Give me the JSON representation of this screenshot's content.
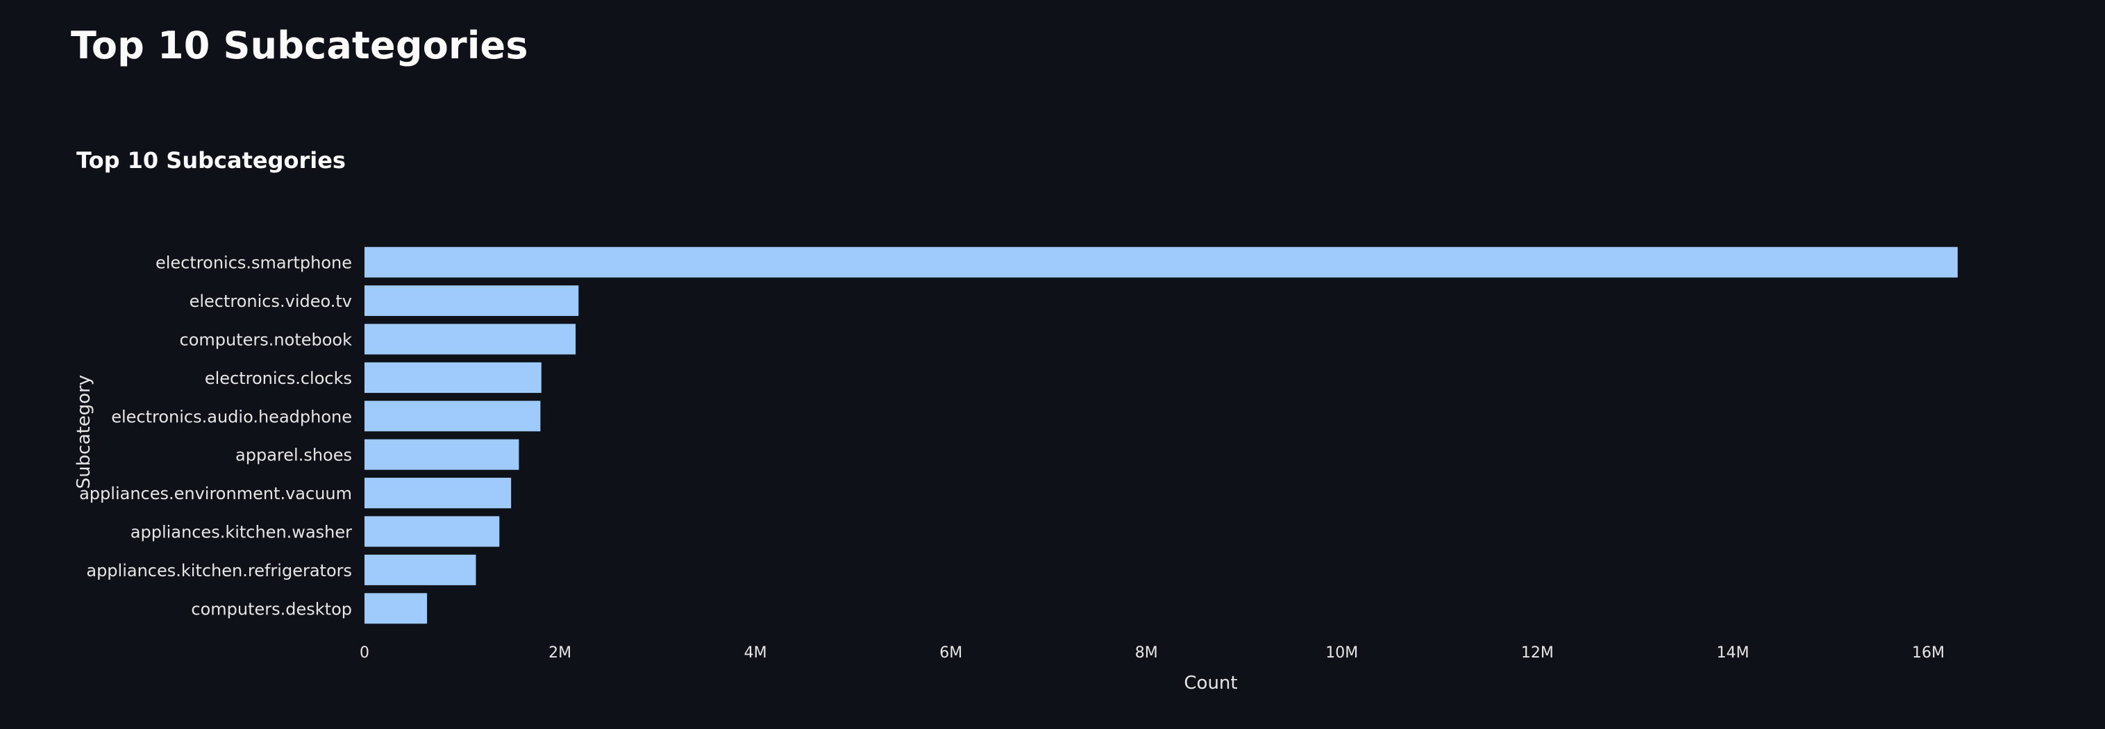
{
  "page": {
    "title": "Top 10 Subcategories"
  },
  "colors": {
    "background": "#0e1117",
    "bar": "#9ecbfc",
    "text": "#fafafa",
    "tick_text": "#e6e6e6"
  },
  "chart_data": {
    "type": "bar",
    "orientation": "horizontal",
    "title": "Top 10 Subcategories",
    "xlabel": "Count",
    "ylabel": "Subcategory",
    "xlim": [
      0,
      16600000
    ],
    "x_ticks": [
      0,
      2000000,
      4000000,
      6000000,
      8000000,
      10000000,
      12000000,
      14000000,
      16000000
    ],
    "x_tick_labels": [
      "0",
      "2M",
      "4M",
      "6M",
      "8M",
      "10M",
      "12M",
      "14M",
      "16M"
    ],
    "grid": false,
    "categories": [
      "electronics.smartphone",
      "electronics.video.tv",
      "computers.notebook",
      "electronics.clocks",
      "electronics.audio.headphone",
      "apparel.shoes",
      "appliances.environment.vacuum",
      "appliances.kitchen.washer",
      "appliances.kitchen.refrigerators",
      "computers.desktop"
    ],
    "values": [
      16300000,
      2190000,
      2160000,
      1810000,
      1800000,
      1580000,
      1500000,
      1380000,
      1140000,
      640000
    ]
  }
}
